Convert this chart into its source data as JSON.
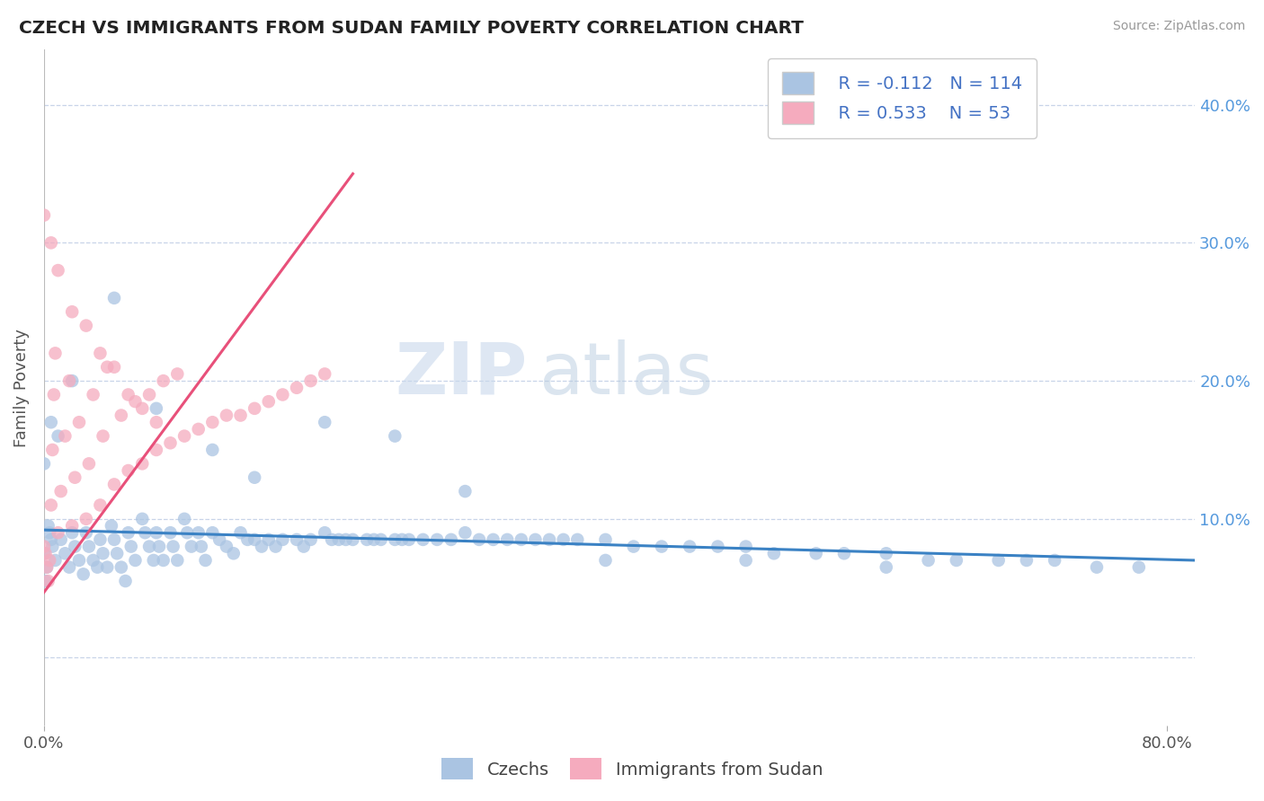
{
  "title": "CZECH VS IMMIGRANTS FROM SUDAN FAMILY POVERTY CORRELATION CHART",
  "source": "Source: ZipAtlas.com",
  "ylabel": "Family Poverty",
  "xlim": [
    0.0,
    0.82
  ],
  "ylim": [
    -0.05,
    0.44
  ],
  "czech_R": -0.112,
  "czech_N": 114,
  "sudan_R": 0.533,
  "sudan_N": 53,
  "czech_color": "#aac4e2",
  "sudan_color": "#f5abbe",
  "czech_line_color": "#3b82c4",
  "sudan_line_color": "#e8507a",
  "legend_label_czech": "Czechs",
  "legend_label_sudan": "Immigrants from Sudan",
  "watermark_zip": "ZIP",
  "watermark_atlas": "atlas",
  "grid_color": "#c8d4e8",
  "background_color": "#ffffff",
  "legend_text_color": "#4472c4",
  "right_tick_color": "#5599dd",
  "czech_x": [
    0.003,
    0.005,
    0.0,
    0.002,
    0.001,
    0.004,
    0.006,
    0.008,
    0.012,
    0.015,
    0.018,
    0.02,
    0.022,
    0.025,
    0.028,
    0.03,
    0.032,
    0.035,
    0.038,
    0.04,
    0.042,
    0.045,
    0.048,
    0.05,
    0.052,
    0.055,
    0.058,
    0.06,
    0.062,
    0.065,
    0.07,
    0.072,
    0.075,
    0.078,
    0.08,
    0.082,
    0.085,
    0.09,
    0.092,
    0.095,
    0.1,
    0.102,
    0.105,
    0.11,
    0.112,
    0.115,
    0.12,
    0.125,
    0.13,
    0.135,
    0.14,
    0.145,
    0.15,
    0.155,
    0.16,
    0.165,
    0.17,
    0.18,
    0.185,
    0.19,
    0.2,
    0.205,
    0.21,
    0.215,
    0.22,
    0.23,
    0.235,
    0.24,
    0.25,
    0.255,
    0.26,
    0.27,
    0.28,
    0.29,
    0.3,
    0.31,
    0.32,
    0.33,
    0.34,
    0.35,
    0.36,
    0.37,
    0.38,
    0.4,
    0.42,
    0.44,
    0.46,
    0.48,
    0.5,
    0.52,
    0.55,
    0.57,
    0.6,
    0.63,
    0.65,
    0.68,
    0.7,
    0.72,
    0.75,
    0.78,
    0.0,
    0.005,
    0.01,
    0.02,
    0.05,
    0.08,
    0.12,
    0.15,
    0.2,
    0.25,
    0.3,
    0.4,
    0.5,
    0.6
  ],
  "czech_y": [
    0.095,
    0.085,
    0.075,
    0.065,
    0.055,
    0.09,
    0.08,
    0.07,
    0.085,
    0.075,
    0.065,
    0.09,
    0.08,
    0.07,
    0.06,
    0.09,
    0.08,
    0.07,
    0.065,
    0.085,
    0.075,
    0.065,
    0.095,
    0.085,
    0.075,
    0.065,
    0.055,
    0.09,
    0.08,
    0.07,
    0.1,
    0.09,
    0.08,
    0.07,
    0.09,
    0.08,
    0.07,
    0.09,
    0.08,
    0.07,
    0.1,
    0.09,
    0.08,
    0.09,
    0.08,
    0.07,
    0.09,
    0.085,
    0.08,
    0.075,
    0.09,
    0.085,
    0.085,
    0.08,
    0.085,
    0.08,
    0.085,
    0.085,
    0.08,
    0.085,
    0.09,
    0.085,
    0.085,
    0.085,
    0.085,
    0.085,
    0.085,
    0.085,
    0.085,
    0.085,
    0.085,
    0.085,
    0.085,
    0.085,
    0.09,
    0.085,
    0.085,
    0.085,
    0.085,
    0.085,
    0.085,
    0.085,
    0.085,
    0.085,
    0.08,
    0.08,
    0.08,
    0.08,
    0.08,
    0.075,
    0.075,
    0.075,
    0.075,
    0.07,
    0.07,
    0.07,
    0.07,
    0.07,
    0.065,
    0.065,
    0.14,
    0.17,
    0.16,
    0.2,
    0.26,
    0.18,
    0.15,
    0.13,
    0.17,
    0.16,
    0.12,
    0.07,
    0.07,
    0.065
  ],
  "sudan_x": [
    0.0,
    0.001,
    0.002,
    0.003,
    0.004,
    0.005,
    0.006,
    0.007,
    0.008,
    0.01,
    0.012,
    0.015,
    0.018,
    0.02,
    0.022,
    0.025,
    0.03,
    0.032,
    0.035,
    0.04,
    0.042,
    0.045,
    0.05,
    0.055,
    0.06,
    0.065,
    0.07,
    0.075,
    0.08,
    0.085,
    0.09,
    0.095,
    0.1,
    0.11,
    0.12,
    0.13,
    0.14,
    0.15,
    0.16,
    0.17,
    0.18,
    0.19,
    0.2,
    0.0,
    0.005,
    0.01,
    0.02,
    0.03,
    0.04,
    0.05,
    0.06,
    0.07,
    0.08
  ],
  "sudan_y": [
    0.08,
    0.075,
    0.065,
    0.055,
    0.07,
    0.11,
    0.15,
    0.19,
    0.22,
    0.09,
    0.12,
    0.16,
    0.2,
    0.095,
    0.13,
    0.17,
    0.1,
    0.14,
    0.19,
    0.11,
    0.16,
    0.21,
    0.125,
    0.175,
    0.135,
    0.185,
    0.14,
    0.19,
    0.15,
    0.2,
    0.155,
    0.205,
    0.16,
    0.165,
    0.17,
    0.175,
    0.175,
    0.18,
    0.185,
    0.19,
    0.195,
    0.2,
    0.205,
    0.32,
    0.3,
    0.28,
    0.25,
    0.24,
    0.22,
    0.21,
    0.19,
    0.18,
    0.17
  ],
  "czech_line_x0": 0.0,
  "czech_line_x1": 0.82,
  "czech_line_y0": 0.092,
  "czech_line_y1": 0.07,
  "sudan_line_x0": -0.005,
  "sudan_line_x1": 0.22,
  "sudan_line_y0": 0.04,
  "sudan_line_y1": 0.35
}
